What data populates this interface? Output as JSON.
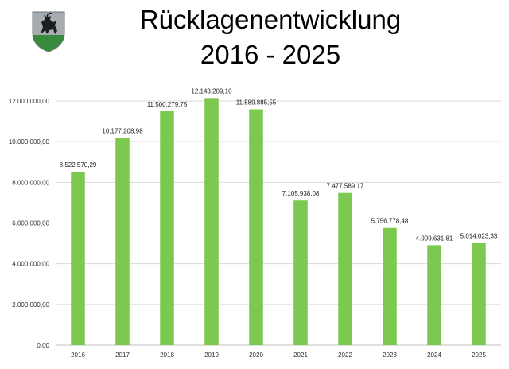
{
  "header": {
    "title_line1": "Rücklagenentwicklung",
    "title_line2": "2016 - 2025",
    "logo_icon": "coat-of-arms-ibex-icon"
  },
  "colors": {
    "bar": "#7dc94f",
    "grid": "#d9d9d9",
    "axis": "#bfbfbf"
  },
  "chart_data": {
    "type": "bar",
    "title": "",
    "xlabel": "",
    "ylabel": "",
    "categories": [
      "2016",
      "2017",
      "2018",
      "2019",
      "2020",
      "2021",
      "2022",
      "2023",
      "2024",
      "2025"
    ],
    "values": [
      8522570.29,
      10177208.98,
      11500279.75,
      12143209.1,
      11589885.55,
      7105938.08,
      7477589.17,
      5756778.48,
      4909631.81,
      5014023.33
    ],
    "value_labels": [
      "8.522.570,29",
      "10.177.208,98",
      "11.500.279,75",
      "12.143.209,10",
      "11.589.885,55",
      "7.105.938,08",
      "7.477.589,17",
      "5.756.778,48",
      "4.909.631,81",
      "5.014.023,33"
    ],
    "y_ticks": [
      0,
      2000000,
      4000000,
      6000000,
      8000000,
      10000000,
      12000000
    ],
    "y_tick_labels": [
      "0,00",
      "2.000.000,00",
      "4.000.000,00",
      "6.000.000,00",
      "8.000.000,00",
      "10.000.000,00",
      "12.000.000,00"
    ],
    "ylim": [
      0,
      12000000
    ],
    "grid": true,
    "legend": "none"
  }
}
